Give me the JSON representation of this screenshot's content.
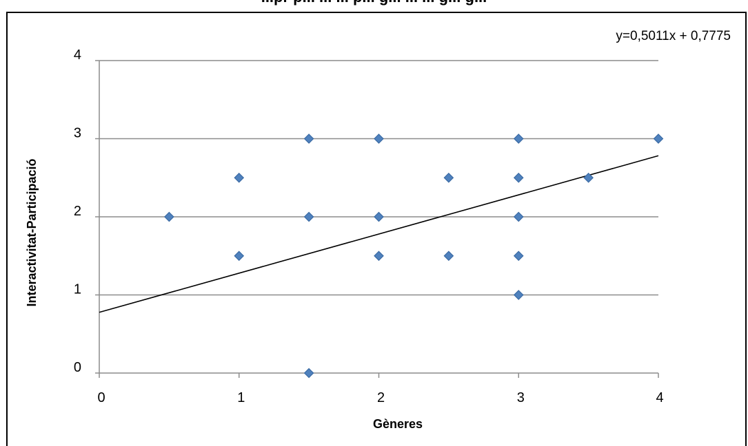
{
  "chart_data": {
    "type": "scatter",
    "title": "",
    "xlabel": "Gèneres",
    "ylabel": "Interactivitat-Participació",
    "xlim": [
      0,
      4
    ],
    "ylim": [
      0,
      4
    ],
    "x_ticks": [
      "0",
      "1",
      "2",
      "3",
      "4"
    ],
    "y_ticks": [
      "0",
      "1",
      "2",
      "3",
      "4"
    ],
    "grid": "horizontal",
    "marker": "diamond",
    "marker_color": "#4F81BD",
    "series": [
      {
        "points": [
          {
            "x": 0.5,
            "y": 2
          },
          {
            "x": 1,
            "y": 2.5
          },
          {
            "x": 1,
            "y": 1.5
          },
          {
            "x": 1.5,
            "y": 3
          },
          {
            "x": 1.5,
            "y": 2
          },
          {
            "x": 1.5,
            "y": 0
          },
          {
            "x": 2,
            "y": 3
          },
          {
            "x": 2,
            "y": 2
          },
          {
            "x": 2,
            "y": 1.5
          },
          {
            "x": 2.5,
            "y": 2.5
          },
          {
            "x": 2.5,
            "y": 1.5
          },
          {
            "x": 3,
            "y": 3
          },
          {
            "x": 3,
            "y": 2.5
          },
          {
            "x": 3,
            "y": 2
          },
          {
            "x": 3,
            "y": 1.5
          },
          {
            "x": 3,
            "y": 1
          },
          {
            "x": 3.5,
            "y": 2.5
          },
          {
            "x": 4,
            "y": 3
          }
        ]
      }
    ],
    "trendline": {
      "slope": 0.5011,
      "intercept": 0.7775,
      "label": "y=0,5011x + 0,7775",
      "color": "#000000"
    }
  },
  "header": {
    "title_text": "...pr p... ... ... p... g... ... ... g... g..."
  }
}
